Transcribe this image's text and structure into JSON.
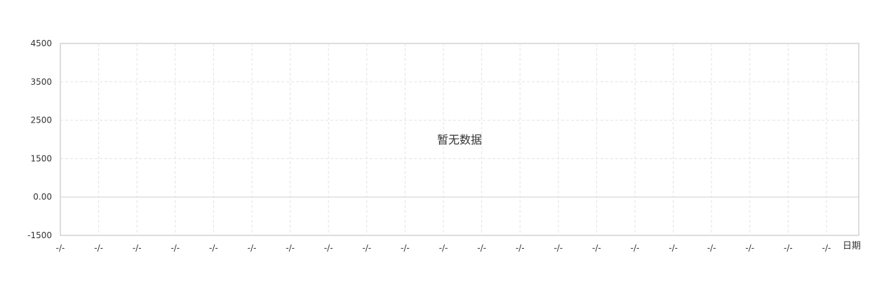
{
  "chart_data": {
    "type": "line",
    "title": "",
    "xlabel": "日期",
    "ylabel": "",
    "y_ticks": [
      "-1500",
      "0.00",
      "1500",
      "2500",
      "3500",
      "4500"
    ],
    "x_ticks": [
      "-/-",
      "-/-",
      "-/-",
      "-/-",
      "-/-",
      "-/-",
      "-/-",
      "-/-",
      "-/-",
      "-/-",
      "-/-",
      "-/-",
      "-/-",
      "-/-",
      "-/-",
      "-/-",
      "-/-",
      "-/-",
      "-/-",
      "-/-",
      "-/-"
    ],
    "empty_message": "暂无数据",
    "series": [],
    "grid": true,
    "grid_style": "dashed"
  }
}
